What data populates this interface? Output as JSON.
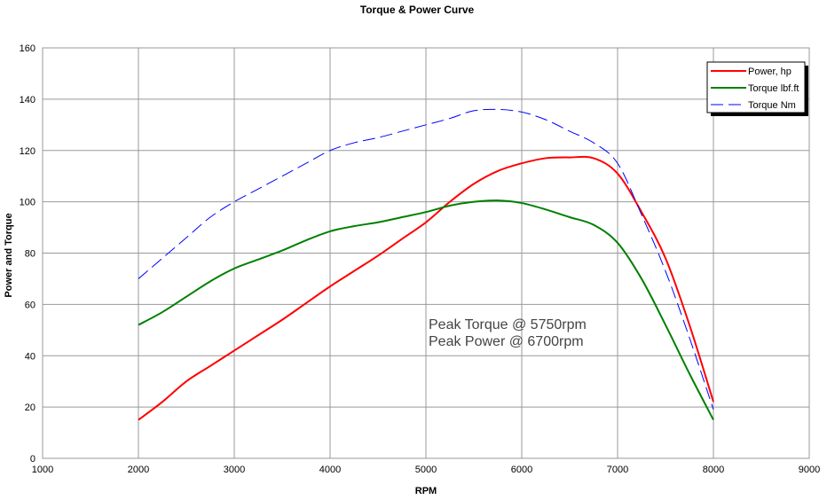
{
  "chart_data": {
    "type": "line",
    "title": "Torque & Power Curve",
    "xlabel": "RPM",
    "ylabel": "Power and Torque",
    "xlim": [
      1000,
      9000
    ],
    "ylim": [
      0,
      160
    ],
    "xticks": [
      1000,
      2000,
      3000,
      4000,
      5000,
      6000,
      7000,
      8000,
      9000
    ],
    "yticks": [
      0,
      20,
      40,
      60,
      80,
      100,
      120,
      140,
      160
    ],
    "grid": true,
    "legend_position": "top-right",
    "x": [
      2000,
      2250,
      2500,
      2750,
      3000,
      3250,
      3500,
      3750,
      4000,
      4250,
      4500,
      4750,
      5000,
      5250,
      5500,
      5750,
      6000,
      6250,
      6500,
      6750,
      7000,
      7250,
      7500,
      7750,
      8000
    ],
    "series": [
      {
        "name": "Power, hp",
        "color": "#ff0000",
        "dash": false,
        "values": [
          15,
          22,
          30,
          36,
          42,
          48,
          54,
          60.5,
          67,
          73,
          79,
          85.5,
          92,
          100,
          107,
          112,
          115,
          117,
          117.3,
          117,
          111,
          96,
          78,
          52,
          22
        ]
      },
      {
        "name": "Torque lbf.ft",
        "color": "#008000",
        "dash": false,
        "values": [
          52,
          57,
          63,
          69,
          74,
          77.5,
          81,
          85,
          88.5,
          90.5,
          92,
          94,
          96,
          98.5,
          100,
          100.5,
          99.5,
          97,
          94,
          91,
          84,
          70,
          52,
          33,
          15
        ]
      },
      {
        "name": "Torque Nm",
        "color": "#0000ff",
        "dash": true,
        "values": [
          70,
          78,
          86,
          94,
          100,
          105,
          110,
          115,
          120,
          123,
          125,
          127.5,
          130,
          132.5,
          135.5,
          136,
          135,
          132,
          127.5,
          123,
          115,
          95,
          73,
          47,
          19
        ]
      }
    ],
    "annotations": [
      "Peak Torque @ 5750rpm",
      "Peak Power @ 6700rpm"
    ]
  }
}
